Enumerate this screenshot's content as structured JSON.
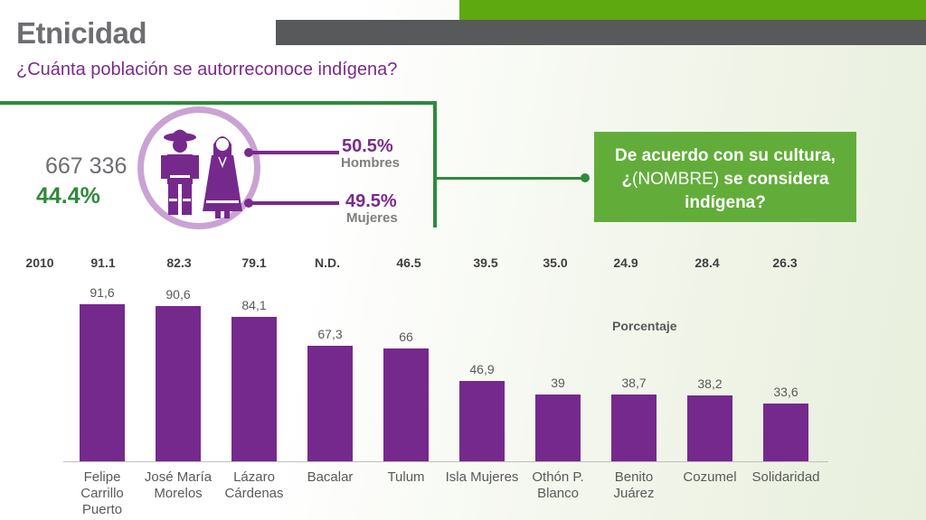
{
  "header": {
    "title": "Etnicidad",
    "subtitle": "¿Cuánta población se autorreconoce indígena?"
  },
  "summary": {
    "population": "667 336",
    "percent": "44.4%",
    "men_pct": "50.5%",
    "men_label": "Hombres",
    "women_pct": "49.5%",
    "women_label": "Mujeres"
  },
  "question": {
    "part1": "De acuerdo con su cultura,",
    "part2_prefix": "¿",
    "part2_plain": "(NOMBRE)",
    "part2_bold": " se considera",
    "part3": "indígena?"
  },
  "icons": {
    "men": "man-figure-icon",
    "women": "woman-figure-icon"
  },
  "colors": {
    "bar": "#76298d",
    "accent_green": "#2f8a3a",
    "question_bg": "#62ad3a",
    "purple_text": "#7a2a8a"
  },
  "comparison_2010": {
    "label": "2010",
    "values": [
      "91.1",
      "82.3",
      "79.1",
      "N.D.",
      "46.5",
      "39.5",
      "35.0",
      "24.9",
      "28.4",
      "26.3"
    ]
  },
  "chart_data": {
    "type": "bar",
    "categories": [
      "Felipe Carrillo Puerto",
      "José María Morelos",
      "Lázaro Cárdenas",
      "Bacalar",
      "Tulum",
      "Isla Mujeres",
      "Othón P. Blanco",
      "Benito Juárez",
      "Cozumel",
      "Solidaridad"
    ],
    "category_lines": [
      [
        "Felipe",
        "Carrillo",
        "Puerto"
      ],
      [
        "José María",
        "Morelos"
      ],
      [
        "Lázaro",
        "Cárdenas"
      ],
      [
        "Bacalar"
      ],
      [
        "Tulum"
      ],
      [
        "Isla Mujeres"
      ],
      [
        "Othón P.",
        "Blanco"
      ],
      [
        "Benito",
        "Juárez"
      ],
      [
        "Cozumel"
      ],
      [
        "Solidaridad"
      ]
    ],
    "values": [
      91.6,
      90.6,
      84.1,
      67.3,
      66,
      46.9,
      39,
      38.7,
      38.2,
      33.6
    ],
    "value_labels": [
      "91,6",
      "90,6",
      "84,1",
      "67,3",
      "66",
      "46,9",
      "39",
      "38,7",
      "38,2",
      "33,6"
    ],
    "series": [
      {
        "name": "Porcentaje",
        "values": [
          91.6,
          90.6,
          84.1,
          67.3,
          66,
          46.9,
          39,
          38.7,
          38.2,
          33.6
        ]
      }
    ],
    "series_label": "Porcentaje",
    "ylim": [
      0,
      100
    ],
    "grid": false
  }
}
